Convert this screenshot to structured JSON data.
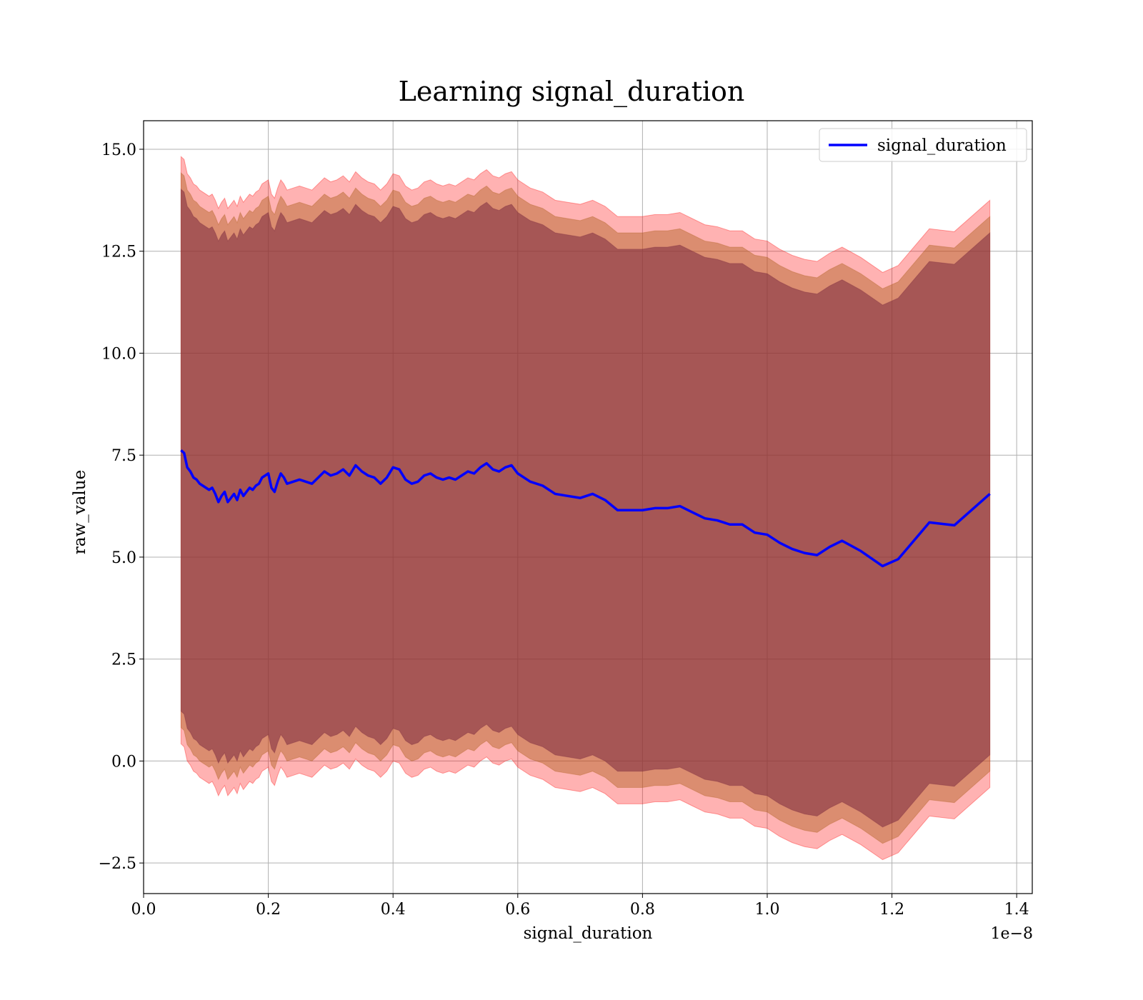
{
  "chart_data": {
    "type": "line",
    "title": "Learning signal_duration",
    "xlabel": "signal_duration",
    "ylabel": "raw_value",
    "x_offset_label": "1e−8",
    "xlim": [
      0.0,
      1.425
    ],
    "ylim": [
      -3.25,
      15.7
    ],
    "x_ticks": [
      0.0,
      0.2,
      0.4,
      0.6,
      0.8,
      1.0,
      1.2,
      1.4
    ],
    "x_tick_labels": [
      "0.0",
      "0.2",
      "0.4",
      "0.6",
      "0.8",
      "1.0",
      "1.2",
      "1.4"
    ],
    "y_ticks": [
      -2.5,
      0.0,
      2.5,
      5.0,
      7.5,
      10.0,
      12.5,
      15.0
    ],
    "y_tick_labels": [
      "−2.5",
      "0.0",
      "2.5",
      "5.0",
      "7.5",
      "10.0",
      "12.5",
      "15.0"
    ],
    "grid": true,
    "legend_position": "upper right",
    "colors": {
      "line": "#0000ff",
      "band_outer": "#ff0000",
      "band_middle": "#b06020",
      "band_inner": "#7a2a40",
      "grid": "#b0b0b0"
    },
    "series": [
      {
        "name": "signal_duration",
        "x": [
          0.06,
          0.065,
          0.07,
          0.075,
          0.08,
          0.085,
          0.09,
          0.095,
          0.1,
          0.105,
          0.11,
          0.115,
          0.12,
          0.125,
          0.13,
          0.135,
          0.14,
          0.145,
          0.15,
          0.155,
          0.16,
          0.165,
          0.17,
          0.175,
          0.18,
          0.185,
          0.19,
          0.195,
          0.2,
          0.205,
          0.21,
          0.215,
          0.22,
          0.225,
          0.23,
          0.24,
          0.25,
          0.26,
          0.27,
          0.28,
          0.29,
          0.3,
          0.31,
          0.32,
          0.33,
          0.34,
          0.35,
          0.36,
          0.37,
          0.38,
          0.39,
          0.4,
          0.41,
          0.42,
          0.43,
          0.44,
          0.45,
          0.46,
          0.47,
          0.48,
          0.49,
          0.5,
          0.51,
          0.52,
          0.53,
          0.54,
          0.55,
          0.56,
          0.57,
          0.58,
          0.59,
          0.6,
          0.62,
          0.64,
          0.66,
          0.68,
          0.7,
          0.72,
          0.74,
          0.76,
          0.78,
          0.8,
          0.82,
          0.84,
          0.86,
          0.88,
          0.9,
          0.92,
          0.94,
          0.96,
          0.98,
          1.0,
          1.02,
          1.04,
          1.06,
          1.08,
          1.1,
          1.12,
          1.15,
          1.185,
          1.21,
          1.26,
          1.3,
          1.357
        ],
        "y": [
          7.62,
          7.55,
          7.2,
          7.1,
          6.95,
          6.9,
          6.8,
          6.75,
          6.7,
          6.65,
          6.7,
          6.55,
          6.35,
          6.5,
          6.6,
          6.35,
          6.45,
          6.55,
          6.4,
          6.65,
          6.5,
          6.6,
          6.7,
          6.65,
          6.75,
          6.8,
          6.95,
          7.0,
          7.05,
          6.7,
          6.6,
          6.85,
          7.05,
          6.95,
          6.8,
          6.85,
          6.9,
          6.85,
          6.8,
          6.95,
          7.1,
          7.0,
          7.05,
          7.15,
          7.0,
          7.25,
          7.1,
          7.0,
          6.95,
          6.8,
          6.95,
          7.2,
          7.15,
          6.9,
          6.8,
          6.85,
          7.0,
          7.05,
          6.95,
          6.9,
          6.95,
          6.9,
          7.0,
          7.1,
          7.05,
          7.2,
          7.3,
          7.15,
          7.1,
          7.2,
          7.25,
          7.05,
          6.85,
          6.75,
          6.55,
          6.5,
          6.45,
          6.55,
          6.4,
          6.15,
          6.15,
          6.15,
          6.2,
          6.2,
          6.25,
          6.1,
          5.95,
          5.9,
          5.8,
          5.8,
          5.6,
          5.55,
          5.35,
          5.2,
          5.1,
          5.05,
          5.25,
          5.4,
          5.15,
          4.78,
          4.95,
          5.85,
          5.78,
          6.55
        ],
        "band_offsets": [
          6.4,
          6.8,
          7.2
        ]
      }
    ]
  }
}
